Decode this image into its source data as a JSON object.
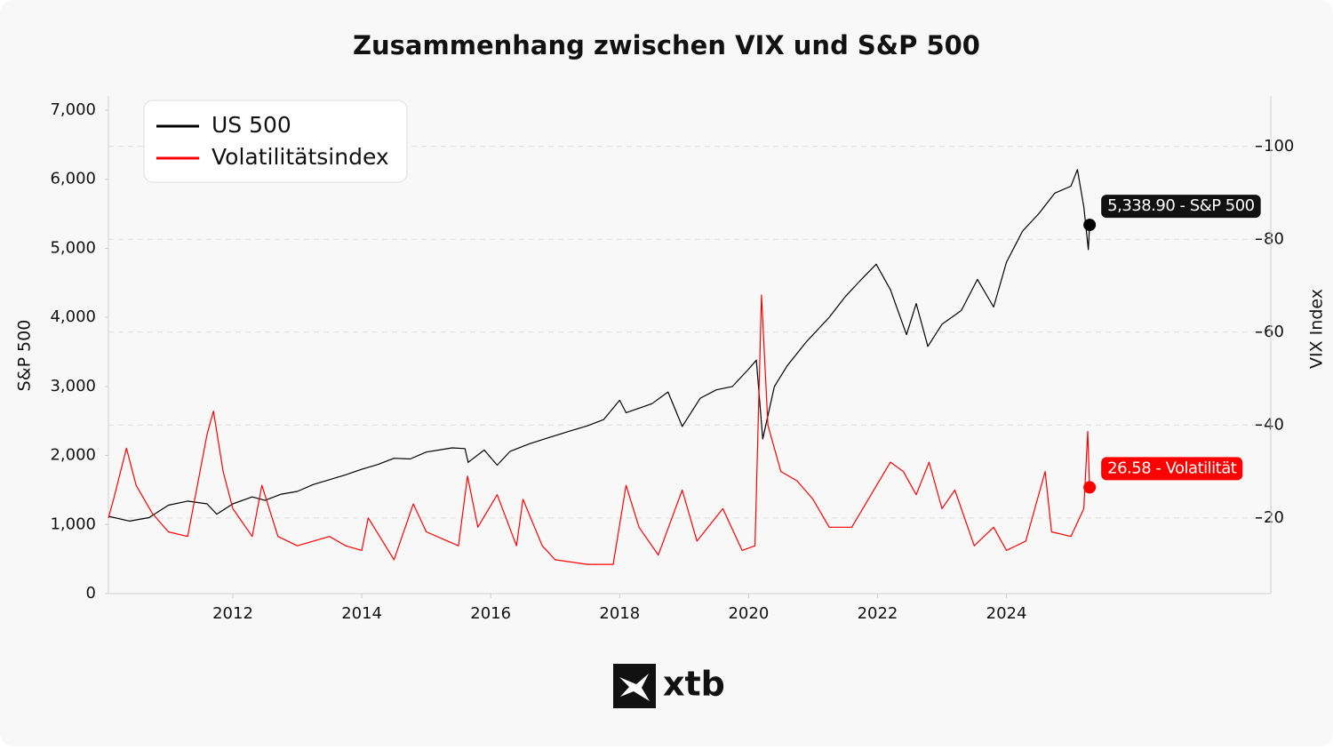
{
  "chart_data": {
    "type": "line",
    "title": "Zusammenhang zwischen VIX und S&P 500",
    "ylabel": "S&P 500",
    "y2label": "VIX Index",
    "xlim": [
      2010.07,
      2028.1
    ],
    "xticks": [
      2012,
      2014,
      2016,
      2018,
      2020,
      2022,
      2024
    ],
    "ylim": [
      0,
      7000
    ],
    "yticks": [
      0,
      {
        "value": 1000,
        "label": "1,000"
      },
      {
        "value": 2000,
        "label": "2,000"
      },
      {
        "value": 3000,
        "label": "3,000"
      },
      {
        "value": 4000,
        "label": "4,000"
      },
      {
        "value": 5000,
        "label": "5,000"
      },
      {
        "value": 6000,
        "label": "6,000"
      },
      {
        "value": 7000,
        "label": "7,000"
      }
    ],
    "y2lim": [
      3.7,
      107.8
    ],
    "y2ticks": [
      20,
      40,
      60,
      80,
      100
    ],
    "grid": true,
    "legend": "upper left",
    "series": [
      {
        "name": "US 500",
        "color": "#000000",
        "x": [
          2010.07,
          2010.4,
          2010.7,
          2011.0,
          2011.3,
          2011.6,
          2011.75,
          2012.0,
          2012.3,
          2012.5,
          2012.75,
          2013.0,
          2013.25,
          2013.5,
          2013.75,
          2014.0,
          2014.25,
          2014.5,
          2014.75,
          2015.0,
          2015.4,
          2015.6,
          2015.65,
          2015.9,
          2016.1,
          2016.3,
          2016.6,
          2016.9,
          2017.25,
          2017.5,
          2017.75,
          2018.0,
          2018.1,
          2018.5,
          2018.75,
          2018.97,
          2019.25,
          2019.5,
          2019.75,
          2020.0,
          2020.12,
          2020.22,
          2020.4,
          2020.6,
          2020.9,
          2021.25,
          2021.5,
          2021.75,
          2021.98,
          2022.2,
          2022.45,
          2022.6,
          2022.78,
          2023.0,
          2023.3,
          2023.55,
          2023.8,
          2024.0,
          2024.25,
          2024.5,
          2024.75,
          2025.0,
          2025.1,
          2025.2,
          2025.27,
          2025.29
        ],
        "values": [
          1120,
          1050,
          1100,
          1280,
          1340,
          1300,
          1150,
          1300,
          1400,
          1350,
          1440,
          1480,
          1580,
          1650,
          1720,
          1800,
          1870,
          1960,
          1950,
          2050,
          2110,
          2100,
          1900,
          2080,
          1860,
          2060,
          2170,
          2260,
          2360,
          2430,
          2520,
          2800,
          2620,
          2750,
          2920,
          2420,
          2830,
          2950,
          3000,
          3250,
          3380,
          2240,
          3000,
          3300,
          3650,
          4000,
          4300,
          4550,
          4770,
          4400,
          3750,
          4200,
          3580,
          3900,
          4100,
          4550,
          4150,
          4800,
          5250,
          5500,
          5800,
          5900,
          6140,
          5600,
          4980,
          5338.9
        ]
      },
      {
        "name": "Volatilitätsindex",
        "color": "#ff0000",
        "axis": "y2",
        "x": [
          2010.07,
          2010.15,
          2010.35,
          2010.5,
          2010.75,
          2011.0,
          2011.3,
          2011.6,
          2011.7,
          2011.85,
          2012.0,
          2012.3,
          2012.45,
          2012.7,
          2013.0,
          2013.5,
          2013.75,
          2014.0,
          2014.1,
          2014.5,
          2014.8,
          2015.0,
          2015.5,
          2015.64,
          2015.8,
          2016.1,
          2016.4,
          2016.5,
          2016.8,
          2017.0,
          2017.5,
          2017.9,
          2018.1,
          2018.3,
          2018.6,
          2018.97,
          2019.2,
          2019.6,
          2019.9,
          2020.1,
          2020.2,
          2020.3,
          2020.5,
          2020.75,
          2021.0,
          2021.25,
          2021.6,
          2021.9,
          2022.2,
          2022.4,
          2022.6,
          2022.8,
          2023.0,
          2023.2,
          2023.5,
          2023.8,
          2024.0,
          2024.3,
          2024.6,
          2024.7,
          2025.0,
          2025.2,
          2025.26,
          2025.29
        ],
        "values": [
          20,
          24,
          35,
          27,
          21,
          17,
          16,
          38,
          43,
          30,
          22,
          16,
          27,
          16,
          14,
          16,
          14,
          13,
          20,
          11,
          23,
          17,
          14,
          29,
          18,
          25,
          14,
          24,
          14,
          11,
          10,
          10,
          27,
          18,
          12,
          26,
          15,
          22,
          13,
          14,
          68,
          40,
          30,
          28,
          24,
          18,
          18,
          25,
          32,
          30,
          25,
          32,
          22,
          26,
          14,
          18,
          13,
          15,
          30,
          17,
          16,
          22,
          38.6,
          26.58
        ]
      }
    ],
    "annotations": [
      "5,338.90 - S&P 500",
      "26.58 - Volatilität"
    ],
    "logo_text": "xtb"
  }
}
